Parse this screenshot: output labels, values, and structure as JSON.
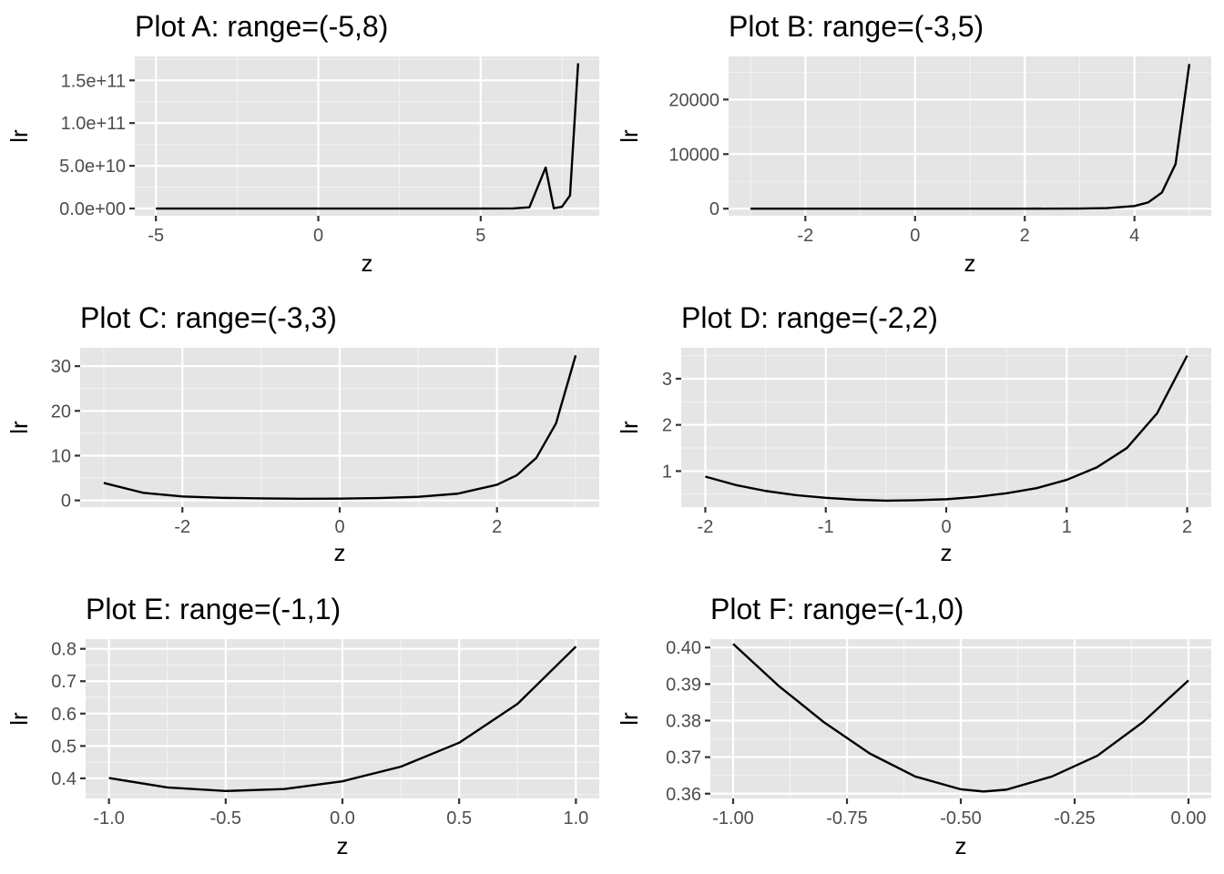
{
  "chart_data": [
    {
      "type": "line",
      "title": "Plot A: range=(-5,8)",
      "xlabel": "z",
      "ylabel": "lr",
      "x_range": [
        -5,
        8
      ],
      "xlim": [
        -5.65,
        8.65
      ],
      "ylim": [
        -8500000000,
        178000000000
      ],
      "x_ticks": [
        -5,
        0,
        5
      ],
      "x_tick_labels": [
        "-5",
        "0",
        "5"
      ],
      "y_ticks": [
        0,
        50000000000,
        100000000000,
        150000000000
      ],
      "y_tick_labels": [
        "0.0e+00",
        "5.0e+10",
        "1.0e+11",
        "1.5e+11"
      ],
      "series": [
        {
          "x": [
            -5,
            -2,
            0,
            2,
            4,
            5,
            6,
            6.5,
            7,
            7.25,
            7.5,
            7.75,
            8
          ],
          "y": [
            6.5,
            1.1,
            0.39,
            5.8,
            4900,
            250000,
            57000000,
            1400000000,
            48000000000,
            310000000,
            1970000000,
            15300000000,
            170000000000
          ]
        }
      ]
    },
    {
      "type": "line",
      "title": "Plot B: range=(-3,5)",
      "xlabel": "z",
      "ylabel": "lr",
      "x_range": [
        -3,
        5
      ],
      "xlim": [
        -3.4,
        5.4
      ],
      "ylim": [
        -1300,
        27900
      ],
      "x_ticks": [
        -2,
        0,
        2,
        4
      ],
      "x_tick_labels": [
        "-2",
        "0",
        "2",
        "4"
      ],
      "y_ticks": [
        0,
        10000,
        20000
      ],
      "y_tick_labels": [
        "0",
        "10000",
        "20000"
      ],
      "series": [
        {
          "x": [
            -3,
            -2,
            -1,
            0,
            1,
            2,
            3,
            3.5,
            4,
            4.25,
            4.5,
            4.75,
            5
          ],
          "y": [
            3.9,
            0.88,
            0.47,
            0.39,
            0.81,
            3.5,
            32,
            110,
            480,
            1150,
            2950,
            8200,
            26500
          ]
        }
      ]
    },
    {
      "type": "line",
      "title": "Plot C: range=(-3,3)",
      "xlabel": "z",
      "ylabel": "lr",
      "x_range": [
        -3,
        3
      ],
      "xlim": [
        -3.3,
        3.3
      ],
      "ylim": [
        -1.5,
        34.1
      ],
      "x_ticks": [
        -2,
        0,
        2
      ],
      "x_tick_labels": [
        "-2",
        "0",
        "2"
      ],
      "y_ticks": [
        0,
        10,
        20,
        30
      ],
      "y_tick_labels": [
        "0",
        "10",
        "20",
        "30"
      ],
      "series": [
        {
          "x": [
            -3,
            -2.5,
            -2,
            -1.5,
            -1,
            -0.5,
            0,
            0.5,
            1,
            1.5,
            2,
            2.25,
            2.5,
            2.75,
            3
          ],
          "y": [
            3.9,
            1.7,
            0.88,
            0.57,
            0.44,
            0.36,
            0.39,
            0.52,
            0.81,
            1.5,
            3.5,
            5.6,
            9.5,
            17.2,
            32.4
          ]
        }
      ]
    },
    {
      "type": "line",
      "title": "Plot D: range=(-2,2)",
      "xlabel": "z",
      "ylabel": "lr",
      "x_range": [
        -2,
        2
      ],
      "xlim": [
        -2.2,
        2.2
      ],
      "ylim": [
        0.22,
        3.67
      ],
      "x_ticks": [
        -2,
        -1,
        0,
        1,
        2
      ],
      "x_tick_labels": [
        "-2",
        "-1",
        "0",
        "1",
        "2"
      ],
      "y_ticks": [
        1,
        2,
        3
      ],
      "y_tick_labels": [
        "1",
        "2",
        "3"
      ],
      "series": [
        {
          "x": [
            -2,
            -1.75,
            -1.5,
            -1.25,
            -1,
            -0.75,
            -0.5,
            -0.25,
            0,
            0.25,
            0.5,
            0.75,
            1,
            1.25,
            1.5,
            1.75,
            2
          ],
          "y": [
            0.88,
            0.7,
            0.57,
            0.48,
            0.42,
            0.38,
            0.36,
            0.37,
            0.39,
            0.44,
            0.52,
            0.63,
            0.81,
            1.08,
            1.5,
            2.25,
            3.5
          ]
        }
      ]
    },
    {
      "type": "line",
      "title": "Plot E: range=(-1,1)",
      "xlabel": "z",
      "ylabel": "lr",
      "x_range": [
        -1,
        1
      ],
      "xlim": [
        -1.1,
        1.1
      ],
      "ylim": [
        0.338,
        0.83
      ],
      "x_ticks": [
        -1,
        -0.5,
        0,
        0.5,
        1
      ],
      "x_tick_labels": [
        "-1.0",
        "-0.5",
        "0.0",
        "0.5",
        "1.0"
      ],
      "y_ticks": [
        0.4,
        0.5,
        0.6,
        0.7,
        0.8
      ],
      "y_tick_labels": [
        "0.4",
        "0.5",
        "0.6",
        "0.7",
        "0.8"
      ],
      "series": [
        {
          "x": [
            -1,
            -0.75,
            -0.5,
            -0.25,
            0,
            0.25,
            0.5,
            0.75,
            1
          ],
          "y": [
            0.401,
            0.372,
            0.361,
            0.367,
            0.391,
            0.436,
            0.51,
            0.63,
            0.807
          ]
        }
      ]
    },
    {
      "type": "line",
      "title": "Plot F: range=(-1,0)",
      "xlabel": "z",
      "ylabel": "lr",
      "x_range": [
        -1,
        0
      ],
      "xlim": [
        -1.05,
        0.05
      ],
      "ylim": [
        0.3587,
        0.4023
      ],
      "x_ticks": [
        -1,
        -0.75,
        -0.5,
        -0.25,
        0
      ],
      "x_tick_labels": [
        "-1.00",
        "-0.75",
        "-0.50",
        "-0.25",
        "0.00"
      ],
      "y_ticks": [
        0.36,
        0.37,
        0.38,
        0.39,
        0.4
      ],
      "y_tick_labels": [
        "0.36",
        "0.37",
        "0.38",
        "0.39",
        "0.40"
      ],
      "series": [
        {
          "x": [
            -1,
            -0.9,
            -0.8,
            -0.7,
            -0.6,
            -0.5,
            -0.45,
            -0.4,
            -0.3,
            -0.2,
            -0.1,
            0
          ],
          "y": [
            0.401,
            0.3895,
            0.3795,
            0.371,
            0.3647,
            0.3612,
            0.3606,
            0.3611,
            0.3647,
            0.3704,
            0.3796,
            0.391
          ]
        }
      ]
    }
  ]
}
